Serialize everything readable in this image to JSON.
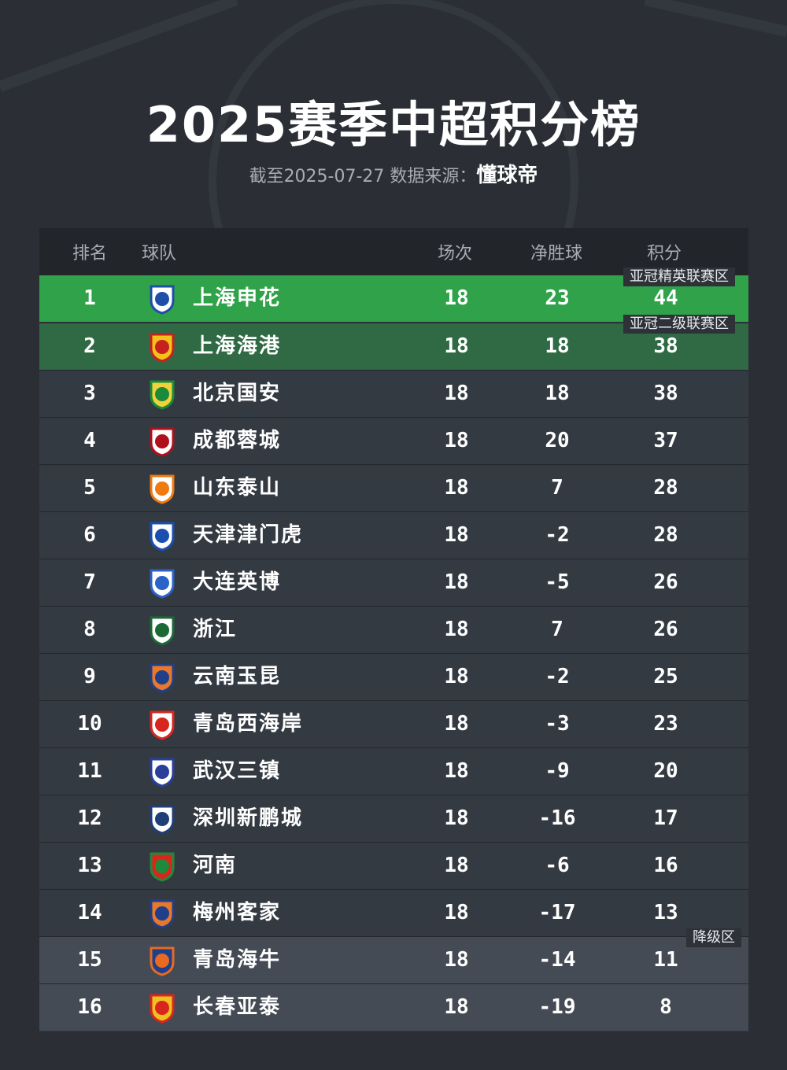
{
  "title": "2025赛季中超积分榜",
  "subtitle": {
    "prefix": "截至2025-07-27 数据来源：",
    "brand": "懂球帝"
  },
  "columns": {
    "rank": "排名",
    "team": "球队",
    "played": "场次",
    "gd": "净胜球",
    "pts": "积分"
  },
  "zones": {
    "acl_elite": "亚冠精英联赛区",
    "acl_two": "亚冠二级联赛区",
    "relegation": "降级区"
  },
  "colors": {
    "acl_elite": "#2fa24a",
    "acl_two": "#2f6a44",
    "relegation": "#444b55",
    "row": "#343a42"
  },
  "rows": [
    {
      "rank": "1",
      "team": "上海申花",
      "played": "18",
      "gd": "23",
      "pts": "44",
      "logo": "shenhua-crest-icon",
      "c1": "#1e4fa8",
      "c2": "#ffffff"
    },
    {
      "rank": "2",
      "team": "上海海港",
      "played": "18",
      "gd": "18",
      "pts": "38",
      "logo": "haigang-crest-icon",
      "c1": "#c8201e",
      "c2": "#f2c21a"
    },
    {
      "rank": "3",
      "team": "北京国安",
      "played": "18",
      "gd": "18",
      "pts": "38",
      "logo": "guoan-crest-icon",
      "c1": "#1b8a3a",
      "c2": "#f0d33a"
    },
    {
      "rank": "4",
      "team": "成都蓉城",
      "played": "18",
      "gd": "20",
      "pts": "37",
      "logo": "rongcheng-crest-icon",
      "c1": "#b0101c",
      "c2": "#ffffff"
    },
    {
      "rank": "5",
      "team": "山东泰山",
      "played": "18",
      "gd": "7",
      "pts": "28",
      "logo": "taishan-crest-icon",
      "c1": "#f07a10",
      "c2": "#ffffff"
    },
    {
      "rank": "6",
      "team": "天津津门虎",
      "played": "18",
      "gd": "-2",
      "pts": "28",
      "logo": "jinmenhu-crest-icon",
      "c1": "#1a4fb0",
      "c2": "#ffffff"
    },
    {
      "rank": "7",
      "team": "大连英博",
      "played": "18",
      "gd": "-5",
      "pts": "26",
      "logo": "yingbo-crest-icon",
      "c1": "#2a63c8",
      "c2": "#ffffff"
    },
    {
      "rank": "8",
      "team": "浙江",
      "played": "18",
      "gd": "7",
      "pts": "26",
      "logo": "zhejiang-crest-icon",
      "c1": "#1b6a35",
      "c2": "#ffffff"
    },
    {
      "rank": "9",
      "team": "云南玉昆",
      "played": "18",
      "gd": "-2",
      "pts": "25",
      "logo": "yukun-crest-icon",
      "c1": "#1f3f8a",
      "c2": "#e8782a"
    },
    {
      "rank": "10",
      "team": "青岛西海岸",
      "played": "18",
      "gd": "-3",
      "pts": "23",
      "logo": "xihaian-crest-icon",
      "c1": "#d8261e",
      "c2": "#ffffff"
    },
    {
      "rank": "11",
      "team": "武汉三镇",
      "played": "18",
      "gd": "-9",
      "pts": "20",
      "logo": "sanzhen-crest-icon",
      "c1": "#2a3f9a",
      "c2": "#ffffff"
    },
    {
      "rank": "12",
      "team": "深圳新鹏城",
      "played": "18",
      "gd": "-16",
      "pts": "17",
      "logo": "xinpengcheng-crest-icon",
      "c1": "#1f3f78",
      "c2": "#ffffff"
    },
    {
      "rank": "13",
      "team": "河南",
      "played": "18",
      "gd": "-6",
      "pts": "16",
      "logo": "henan-crest-icon",
      "c1": "#1f8a3a",
      "c2": "#d8261e"
    },
    {
      "rank": "14",
      "team": "梅州客家",
      "played": "18",
      "gd": "-17",
      "pts": "13",
      "logo": "kejia-crest-icon",
      "c1": "#1f3f8a",
      "c2": "#e8782a"
    },
    {
      "rank": "15",
      "team": "青岛海牛",
      "played": "18",
      "gd": "-14",
      "pts": "11",
      "logo": "hainiu-crest-icon",
      "c1": "#e86a20",
      "c2": "#1f3f8a"
    },
    {
      "rank": "16",
      "team": "长春亚泰",
      "played": "18",
      "gd": "-19",
      "pts": "8",
      "logo": "yatai-crest-icon",
      "c1": "#d8261e",
      "c2": "#f0c020"
    }
  ]
}
